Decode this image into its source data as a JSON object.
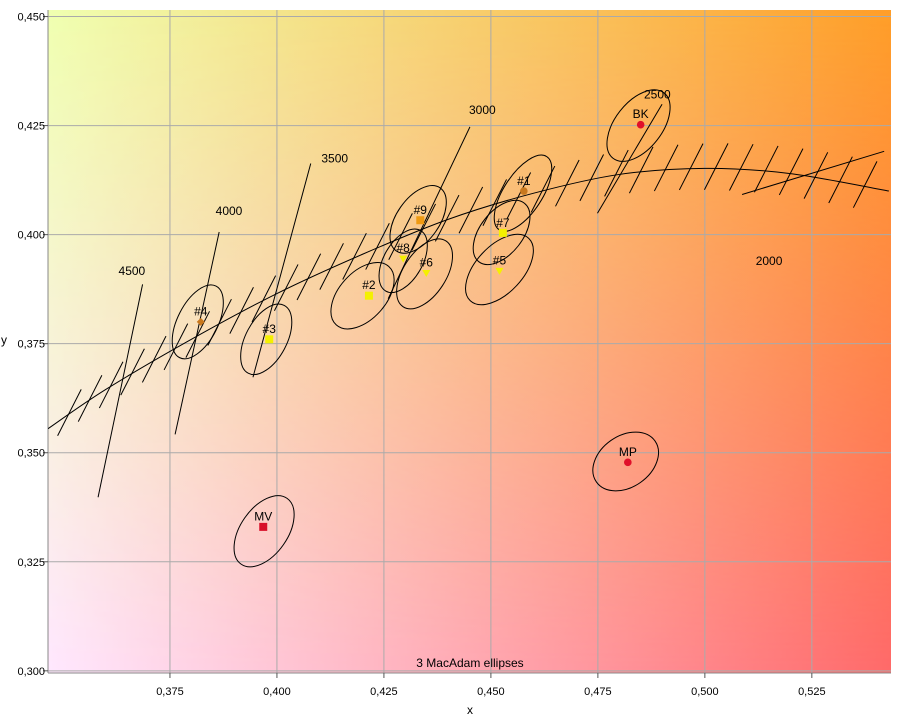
{
  "chart_data": {
    "type": "scatter",
    "title": "",
    "xlabel": "x",
    "ylabel": "y",
    "xlim": [
      0.3465,
      0.5435
    ],
    "ylim": [
      0.2995,
      0.4515
    ],
    "x_ticks": [
      0.375,
      0.4,
      0.425,
      0.45,
      0.475,
      0.5,
      0.525
    ],
    "x_tick_labels": [
      "0,375",
      "0,400",
      "0,425",
      "0,450",
      "0,475",
      "0,500",
      "0,525"
    ],
    "y_ticks": [
      0.3,
      0.325,
      0.35,
      0.375,
      0.4,
      0.425,
      0.45
    ],
    "y_tick_labels": [
      "0,300",
      "0,325",
      "0,350",
      "0,375",
      "0,400",
      "0,425",
      "0,450"
    ],
    "grid": true,
    "footer_note": "3  MacAdam ellipses",
    "planckian_locus": {
      "x": [
        0.3465,
        0.36,
        0.38,
        0.4,
        0.42,
        0.44,
        0.46,
        0.48,
        0.5,
        0.52,
        0.543
      ],
      "y": [
        0.3555,
        0.3645,
        0.376,
        0.3865,
        0.3955,
        0.4035,
        0.4095,
        0.4138,
        0.4152,
        0.414,
        0.41
      ]
    },
    "cct_lines": [
      {
        "label": "4500",
        "x1": 0.3582,
        "y1": 0.3398,
        "x2": 0.3686,
        "y2": 0.3886
      },
      {
        "label": "4000",
        "x1": 0.3762,
        "y1": 0.3542,
        "x2": 0.3865,
        "y2": 0.4006
      },
      {
        "label": "3500",
        "x1": 0.3944,
        "y1": 0.3673,
        "x2": 0.4079,
        "y2": 0.4163
      },
      {
        "label": "3000",
        "x1": 0.426,
        "y1": 0.3853,
        "x2": 0.4451,
        "y2": 0.4247
      },
      {
        "label": "2500",
        "x1": 0.4749,
        "y1": 0.4049,
        "x2": 0.49,
        "y2": 0.4299
      },
      {
        "label": "2000",
        "x1": 0.5087,
        "y1": 0.4092,
        "x2": 0.5419,
        "y2": 0.4191
      }
    ],
    "cct_labels": [
      {
        "label": "4500",
        "x": 0.3661,
        "y": 0.3907
      },
      {
        "label": "4000",
        "x": 0.3888,
        "y": 0.4045
      },
      {
        "label": "3500",
        "x": 0.4135,
        "y": 0.4165
      },
      {
        "label": "3000",
        "x": 0.448,
        "y": 0.4277
      },
      {
        "label": "2500",
        "x": 0.4889,
        "y": 0.4312
      },
      {
        "label": "2000",
        "x": 0.515,
        "y": 0.393
      }
    ],
    "ellipses": [
      {
        "label": "#1",
        "cx": 0.4575,
        "cy": 0.4095,
        "rx": 0.0045,
        "ry": 0.01,
        "rot": 33
      },
      {
        "label": "#2",
        "cx": 0.42,
        "cy": 0.386,
        "rx": 0.0055,
        "ry": 0.009,
        "rot": 42
      },
      {
        "label": "#3",
        "cx": 0.3975,
        "cy": 0.376,
        "rx": 0.0048,
        "ry": 0.0088,
        "rot": 28
      },
      {
        "label": "#4",
        "cx": 0.3815,
        "cy": 0.38,
        "rx": 0.0047,
        "ry": 0.0092,
        "rot": 27
      },
      {
        "label": "#5",
        "cx": 0.452,
        "cy": 0.392,
        "rx": 0.0055,
        "ry": 0.0098,
        "rot": 43
      },
      {
        "label": "#6",
        "cx": 0.4345,
        "cy": 0.391,
        "rx": 0.005,
        "ry": 0.009,
        "rot": 33
      },
      {
        "label": "#7",
        "cx": 0.4525,
        "cy": 0.4005,
        "rx": 0.005,
        "ry": 0.0085,
        "rot": 38
      },
      {
        "label": "#8",
        "cx": 0.4295,
        "cy": 0.394,
        "rx": 0.0045,
        "ry": 0.008,
        "rot": 30
      },
      {
        "label": "#9",
        "cx": 0.433,
        "cy": 0.4035,
        "rx": 0.005,
        "ry": 0.0088,
        "rot": 35
      },
      {
        "label": "BK",
        "cx": 0.4845,
        "cy": 0.425,
        "rx": 0.0055,
        "ry": 0.0095,
        "rot": 38
      },
      {
        "label": "MP",
        "cx": 0.4815,
        "cy": 0.348,
        "rx": 0.006,
        "ry": 0.0082,
        "rot": 55
      },
      {
        "label": "MV",
        "cx": 0.397,
        "cy": 0.332,
        "rx": 0.0055,
        "ry": 0.0092,
        "rot": 35
      }
    ],
    "points": [
      {
        "label": "#1",
        "x": 0.4577,
        "y": 0.41,
        "marker": "circle",
        "color": "#c8781e"
      },
      {
        "label": "#2",
        "x": 0.4215,
        "y": 0.386,
        "marker": "square",
        "color": "#f4f000"
      },
      {
        "label": "#3",
        "x": 0.3982,
        "y": 0.376,
        "marker": "square",
        "color": "#f4f000"
      },
      {
        "label": "#4",
        "x": 0.3822,
        "y": 0.38,
        "marker": "diamond",
        "color": "#c8781e"
      },
      {
        "label": "#5",
        "x": 0.452,
        "y": 0.3917,
        "marker": "triangle-down",
        "color": "#f4f000"
      },
      {
        "label": "#6",
        "x": 0.4349,
        "y": 0.3912,
        "marker": "triangle-down",
        "color": "#f4f000"
      },
      {
        "label": "#7",
        "x": 0.4528,
        "y": 0.4004,
        "marker": "square",
        "color": "#f4f000"
      },
      {
        "label": "#8",
        "x": 0.4295,
        "y": 0.3945,
        "marker": "triangle-down",
        "color": "#f4f000"
      },
      {
        "label": "#9",
        "x": 0.4335,
        "y": 0.4033,
        "marker": "square",
        "color": "#f09a12"
      },
      {
        "label": "BK",
        "x": 0.485,
        "y": 0.4252,
        "marker": "circle",
        "color": "#e0102a"
      },
      {
        "label": "MP",
        "x": 0.482,
        "y": 0.3478,
        "marker": "circle",
        "color": "#e0102a"
      },
      {
        "label": "MV",
        "x": 0.3968,
        "y": 0.333,
        "marker": "square",
        "color": "#d8102a"
      }
    ],
    "point_labels": [
      {
        "label": "#1",
        "x": 0.4577,
        "y": 0.4114
      },
      {
        "label": "#2",
        "x": 0.4215,
        "y": 0.3875
      },
      {
        "label": "#3",
        "x": 0.3982,
        "y": 0.3775
      },
      {
        "label": "#4",
        "x": 0.3822,
        "y": 0.3815
      },
      {
        "label": "#5",
        "x": 0.452,
        "y": 0.3932
      },
      {
        "label": "#6",
        "x": 0.4349,
        "y": 0.3927
      },
      {
        "label": "#7",
        "x": 0.4528,
        "y": 0.4018
      },
      {
        "label": "#8",
        "x": 0.4295,
        "y": 0.396
      },
      {
        "label": "#9",
        "x": 0.4335,
        "y": 0.4047
      },
      {
        "label": "BK",
        "x": 0.485,
        "y": 0.4267
      },
      {
        "label": "MP",
        "x": 0.482,
        "y": 0.3493
      },
      {
        "label": "MV",
        "x": 0.3968,
        "y": 0.3345
      }
    ],
    "colors": {
      "bg_top_left": "#f0ffb0",
      "bg_top_right": "#ff9e28",
      "bg_bottom_left": "#ffe8ff",
      "bg_bottom_right": "#ff6a6a",
      "grid": "#aaaaaa",
      "line": "#000000"
    }
  }
}
